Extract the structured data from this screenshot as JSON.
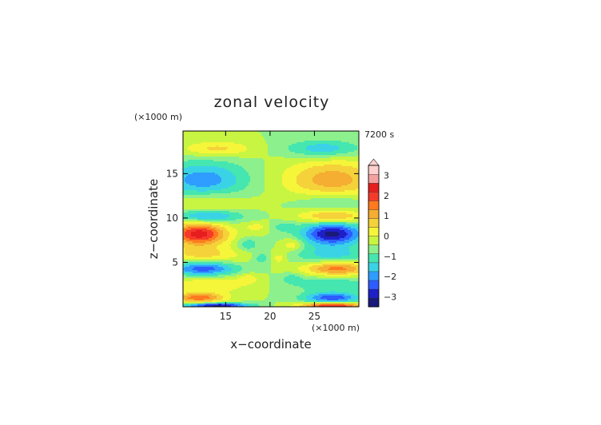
{
  "chart_data": {
    "type": "heatmap",
    "title": "zonal velocity",
    "time_label": "7200 s",
    "xlabel": "x−coordinate",
    "ylabel": "z−coordinate",
    "x_unit": "(×1000 m)",
    "y_unit": "(×1000 m)",
    "xlim": [
      10.2,
      30.0
    ],
    "ylim": [
      0.0,
      19.8
    ],
    "x_ticks": [
      15,
      20,
      25
    ],
    "y_ticks": [
      5,
      10,
      15
    ],
    "colorbar": {
      "range": [
        -3.5,
        3.5
      ],
      "step": 0.5,
      "labels": [
        3,
        2,
        1,
        0,
        -1,
        -2,
        -3
      ],
      "colors": [
        "#1a1a7a",
        "#1f1fc8",
        "#2e5cff",
        "#2f9dff",
        "#3ad3e6",
        "#45e6b0",
        "#8cf08c",
        "#c8f542",
        "#f5f53a",
        "#f5d23a",
        "#f5ad32",
        "#ff7a1f",
        "#f53a2a",
        "#e61e1e",
        "#f5a0a0",
        "#ffd0d0"
      ]
    },
    "field_features": [
      {
        "x": 12.0,
        "z": 8.2,
        "sx": 2.2,
        "sz": 0.9,
        "u": 3.3
      },
      {
        "x": 27.0,
        "z": 8.2,
        "sx": 2.4,
        "sz": 0.9,
        "u": -3.2
      },
      {
        "x": 12.5,
        "z": 14.3,
        "sx": 3.5,
        "sz": 1.5,
        "u": -1.8
      },
      {
        "x": 27.0,
        "z": 14.3,
        "sx": 3.8,
        "sz": 1.6,
        "u": 1.8
      },
      {
        "x": 14.0,
        "z": 17.8,
        "sx": 2.8,
        "sz": 0.6,
        "u": 1.2
      },
      {
        "x": 26.0,
        "z": 17.8,
        "sx": 3.0,
        "sz": 0.7,
        "u": -1.4
      },
      {
        "x": 13.0,
        "z": 11.8,
        "sx": 3.0,
        "sz": 0.8,
        "u": 0.9
      },
      {
        "x": 27.0,
        "z": 11.8,
        "sx": 3.0,
        "sz": 0.8,
        "u": -0.9
      },
      {
        "x": 13.0,
        "z": 10.2,
        "sx": 2.6,
        "sz": 0.5,
        "u": -1.8
      },
      {
        "x": 27.0,
        "z": 10.2,
        "sx": 2.6,
        "sz": 0.5,
        "u": 1.8
      },
      {
        "x": 12.5,
        "z": 5.8,
        "sx": 3.0,
        "sz": 0.7,
        "u": 1.2
      },
      {
        "x": 27.0,
        "z": 5.8,
        "sx": 3.0,
        "sz": 0.7,
        "u": -1.2
      },
      {
        "x": 12.5,
        "z": 4.3,
        "sx": 2.6,
        "sz": 0.6,
        "u": -2.4
      },
      {
        "x": 27.5,
        "z": 4.3,
        "sx": 2.6,
        "sz": 0.6,
        "u": 2.3
      },
      {
        "x": 13.0,
        "z": 2.5,
        "sx": 3.2,
        "sz": 0.7,
        "u": 1.0
      },
      {
        "x": 27.0,
        "z": 2.5,
        "sx": 3.2,
        "sz": 0.7,
        "u": -1.0
      },
      {
        "x": 12.0,
        "z": 1.0,
        "sx": 2.0,
        "sz": 0.4,
        "u": 2.3
      },
      {
        "x": 27.0,
        "z": 1.0,
        "sx": 2.2,
        "sz": 0.4,
        "u": -2.3
      },
      {
        "x": 14.0,
        "z": 0.15,
        "sx": 2.5,
        "sz": 0.2,
        "u": -3.3
      },
      {
        "x": 27.0,
        "z": 0.15,
        "sx": 2.5,
        "sz": 0.2,
        "u": 3.3
      },
      {
        "x": 17.5,
        "z": 7.0,
        "sx": 0.8,
        "sz": 0.5,
        "u": -1.0
      },
      {
        "x": 22.5,
        "z": 7.0,
        "sx": 0.8,
        "sz": 0.5,
        "u": 1.0
      },
      {
        "x": 19.0,
        "z": 5.5,
        "sx": 0.6,
        "sz": 0.5,
        "u": -0.8
      },
      {
        "x": 21.0,
        "z": 5.5,
        "sx": 0.6,
        "sz": 0.5,
        "u": 0.8
      },
      {
        "x": 18.5,
        "z": 9.0,
        "sx": 1.0,
        "sz": 0.4,
        "u": 0.7
      },
      {
        "x": 21.5,
        "z": 9.0,
        "sx": 1.0,
        "sz": 0.4,
        "u": -0.7
      },
      {
        "x": 17.5,
        "z": 3.2,
        "sx": 0.8,
        "sz": 0.4,
        "u": 0.8
      },
      {
        "x": 22.5,
        "z": 3.2,
        "sx": 0.8,
        "sz": 0.4,
        "u": -0.8
      }
    ]
  }
}
